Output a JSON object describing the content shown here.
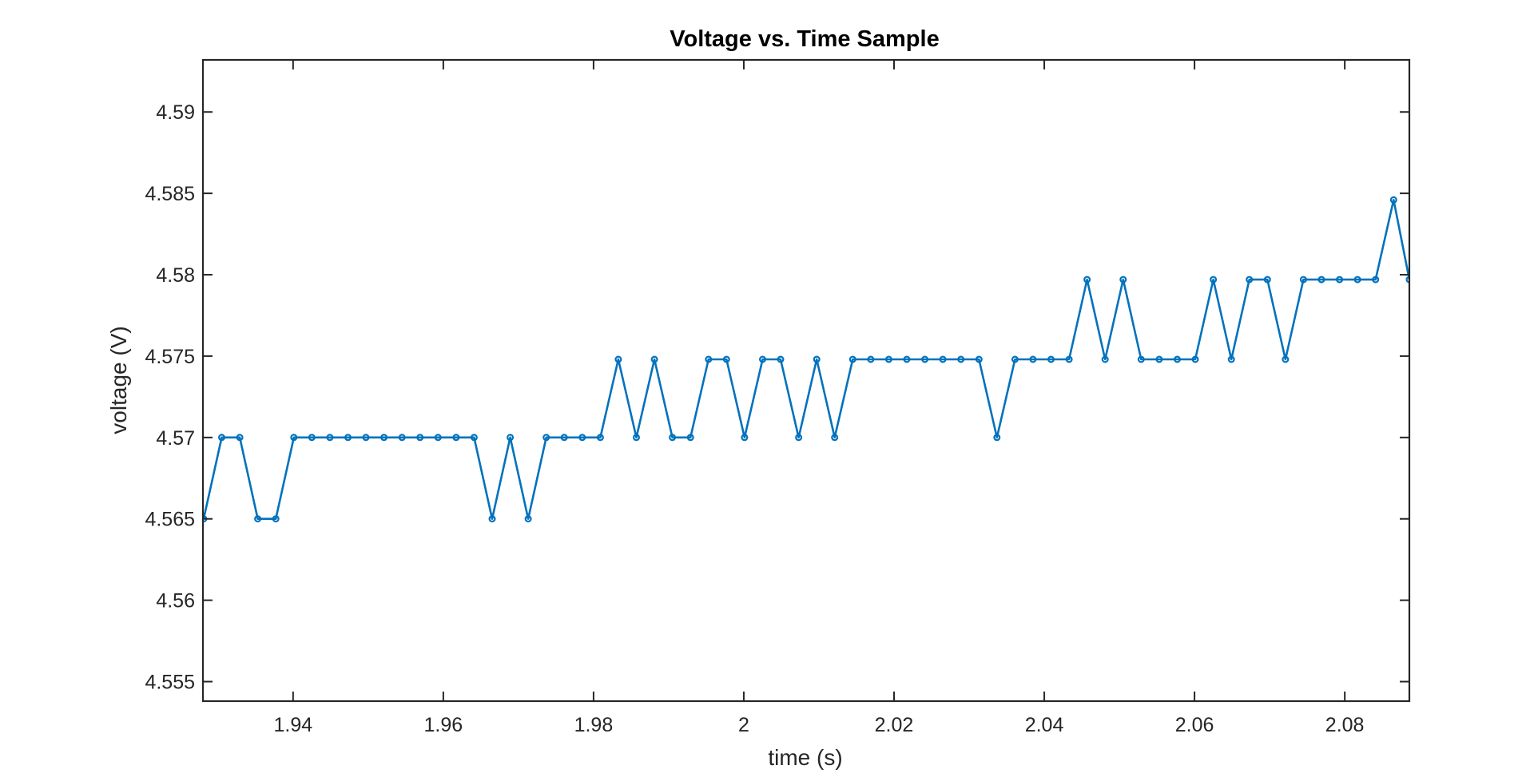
{
  "chart_data": {
    "type": "line",
    "title": "Voltage vs. Time Sample",
    "xlabel": "time (s)",
    "ylabel": "voltage (V)",
    "xlim": [
      1.928,
      2.0886
    ],
    "ylim": [
      4.5538,
      4.5932
    ],
    "x_ticks": [
      1.94,
      1.96,
      1.98,
      2,
      2.02,
      2.04,
      2.06,
      2.08
    ],
    "x_tick_labels": [
      "1.94",
      "1.96",
      "1.98",
      "2",
      "2.02",
      "2.04",
      "2.06",
      "2.08"
    ],
    "y_ticks": [
      4.555,
      4.56,
      4.565,
      4.57,
      4.575,
      4.58,
      4.585,
      4.59
    ],
    "y_tick_labels": [
      "4.555",
      "4.56",
      "4.565",
      "4.57",
      "4.575",
      "4.58",
      "4.585",
      "4.59"
    ],
    "grid": false,
    "box": true,
    "series": [
      {
        "color": "#0072bd",
        "marker": "circle",
        "x": [
          1.9281,
          1.9305,
          1.9329,
          1.9353,
          1.9377,
          1.9401,
          1.9425,
          1.9449,
          1.9473,
          1.9497,
          1.9521,
          1.9545,
          1.9569,
          1.9593,
          1.9617,
          1.9641,
          1.9665,
          1.9689,
          1.9713,
          1.9737,
          1.9761,
          1.9785,
          1.9809,
          1.9833,
          1.9857,
          1.9881,
          1.9905,
          1.9929,
          1.9953,
          1.9977,
          2.0001,
          2.0025,
          2.0049,
          2.0073,
          2.0097,
          2.0121,
          2.0145,
          2.0169,
          2.0193,
          2.0217,
          2.0241,
          2.0265,
          2.0289,
          2.0313,
          2.0337,
          2.0361,
          2.0385,
          2.0409,
          2.0433,
          2.0457,
          2.0481,
          2.0505,
          2.0529,
          2.0553,
          2.0577,
          2.0601,
          2.0625,
          2.0649,
          2.0673,
          2.0697,
          2.0721,
          2.0745,
          2.0769,
          2.0793,
          2.0817,
          2.0841,
          2.0865,
          2.0886
        ],
        "y": [
          4.565,
          4.57,
          4.57,
          4.565,
          4.565,
          4.57,
          4.57,
          4.57,
          4.57,
          4.57,
          4.57,
          4.57,
          4.57,
          4.57,
          4.57,
          4.57,
          4.565,
          4.57,
          4.565,
          4.57,
          4.57,
          4.57,
          4.57,
          4.5748,
          4.57,
          4.5748,
          4.57,
          4.57,
          4.5748,
          4.5748,
          4.57,
          4.5748,
          4.5748,
          4.57,
          4.5748,
          4.57,
          4.5748,
          4.5748,
          4.5748,
          4.5748,
          4.5748,
          4.5748,
          4.5748,
          4.5748,
          4.57,
          4.5748,
          4.5748,
          4.5748,
          4.5748,
          4.5797,
          4.5748,
          4.5797,
          4.5748,
          4.5748,
          4.5748,
          4.5748,
          4.5797,
          4.5748,
          4.5797,
          4.5797,
          4.5748,
          4.5797,
          4.5797,
          4.5797,
          4.5797,
          4.5797,
          4.5846,
          4.5797
        ]
      }
    ]
  }
}
